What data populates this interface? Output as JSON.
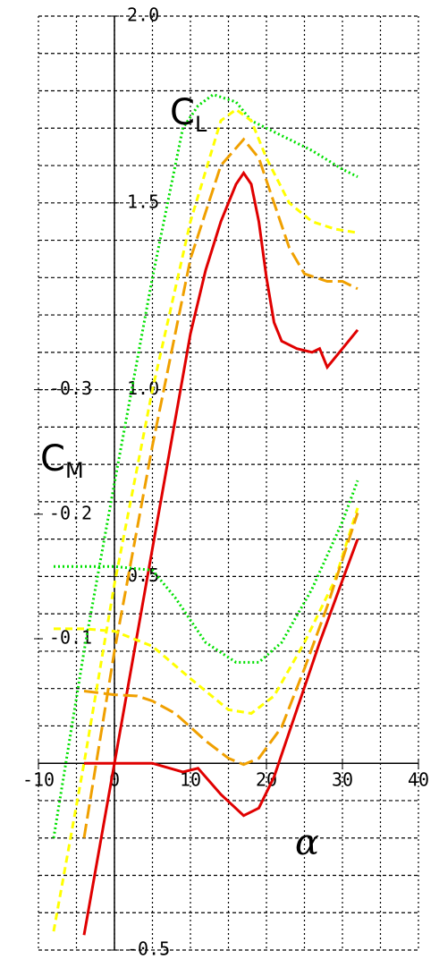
{
  "chart_data": {
    "type": "line",
    "xlabel": "α",
    "ylabel": {
      "main": "C",
      "sub": "L"
    },
    "y2label": {
      "main": "C",
      "sub": "M"
    },
    "xlim": [
      -10,
      40
    ],
    "xticks": [
      -10,
      0,
      10,
      20,
      30,
      40
    ],
    "xgrid": [
      -10,
      -5,
      0,
      5,
      10,
      15,
      20,
      25,
      30,
      35,
      40
    ],
    "ylim": [
      -0.5,
      2.0
    ],
    "yticks": [
      {
        "value": 2.0,
        "label": "2.0"
      },
      1.5,
      {
        "value": 1.0,
        "label": "1.0"
      },
      0.5,
      -0.5
    ],
    "ygrid": [
      -0.5,
      -0.4,
      -0.3,
      -0.2,
      -0.1,
      0,
      0.1,
      0.2,
      0.3,
      0.4,
      0.5,
      0.6,
      0.7,
      0.8,
      0.9,
      1.0,
      1.1,
      1.2,
      1.3,
      1.4,
      1.5,
      1.6,
      1.7,
      1.8,
      1.9,
      2.0
    ],
    "y2lim": [
      0.15,
      -0.6
    ],
    "y2ticks": [
      -0.3,
      -0.2,
      -0.1
    ],
    "grid": true,
    "series": [
      {
        "color": "#00e000",
        "style": "dotted",
        "axis": "y",
        "x": [
          -8,
          -4,
          0,
          5,
          9,
          11,
          13,
          16,
          18,
          22,
          26,
          30,
          32
        ],
        "values": [
          -0.2,
          0.3,
          0.75,
          1.3,
          1.7,
          1.76,
          1.79,
          1.77,
          1.72,
          1.68,
          1.64,
          1.59,
          1.57
        ]
      },
      {
        "color": "#ffff00",
        "style": "dashed",
        "axis": "y",
        "x": [
          -8,
          -4,
          0,
          5,
          10,
          14,
          16,
          18,
          20,
          23,
          26,
          29,
          32
        ],
        "values": [
          -0.45,
          0.0,
          0.48,
          1.0,
          1.45,
          1.72,
          1.75,
          1.72,
          1.62,
          1.5,
          1.45,
          1.43,
          1.42
        ]
      },
      {
        "color": "#f0a000",
        "style": "longdash",
        "axis": "y",
        "x": [
          -4,
          0,
          5,
          10,
          14,
          17,
          19,
          21,
          23,
          25,
          28,
          30,
          32
        ],
        "values": [
          -0.2,
          0.3,
          0.85,
          1.35,
          1.6,
          1.67,
          1.62,
          1.5,
          1.38,
          1.31,
          1.29,
          1.29,
          1.27
        ]
      },
      {
        "color": "#e00000",
        "style": "solid",
        "axis": "y",
        "x": [
          -4,
          0,
          10,
          12,
          14,
          16,
          17,
          18,
          19,
          20,
          21,
          22,
          24,
          26,
          27,
          28,
          30,
          32
        ],
        "values": [
          -0.46,
          0.0,
          1.15,
          1.32,
          1.45,
          1.55,
          1.58,
          1.55,
          1.45,
          1.3,
          1.18,
          1.13,
          1.11,
          1.1,
          1.11,
          1.06,
          1.11,
          1.16
        ]
      },
      {
        "color": "#00e000",
        "style": "dotted",
        "axis": "y2",
        "x": [
          -8,
          -4,
          0,
          5,
          8,
          12,
          16,
          19,
          22,
          26,
          30,
          32
        ],
        "values": [
          -0.158,
          -0.158,
          -0.158,
          -0.155,
          -0.133,
          -0.097,
          -0.081,
          -0.081,
          -0.097,
          -0.14,
          -0.194,
          -0.227
        ]
      },
      {
        "color": "#ffff00",
        "style": "dashed",
        "axis": "y2",
        "x": [
          -8,
          -4,
          0,
          5,
          10,
          15,
          18,
          21,
          25,
          29,
          32
        ],
        "values": [
          -0.108,
          -0.108,
          -0.106,
          -0.094,
          -0.068,
          -0.043,
          -0.04,
          -0.054,
          -0.097,
          -0.147,
          -0.205
        ]
      },
      {
        "color": "#f0a000",
        "style": "longdash",
        "axis": "y2",
        "x": [
          -4,
          0,
          3,
          5,
          8,
          12,
          15,
          17,
          19,
          22,
          25,
          28,
          32
        ],
        "values": [
          -0.058,
          -0.055,
          -0.054,
          -0.05,
          -0.04,
          -0.018,
          -0.004,
          0.001,
          -0.004,
          -0.029,
          -0.076,
          -0.126,
          -0.201
        ]
      },
      {
        "color": "#e00000",
        "style": "solid",
        "axis": "y2",
        "x": [
          -4,
          0,
          5,
          9,
          11,
          14,
          17,
          19,
          21,
          24,
          27,
          30,
          32
        ],
        "values": [
          0.0,
          0.0,
          0.0,
          0.007,
          0.004,
          0.025,
          0.042,
          0.036,
          0.011,
          -0.043,
          -0.097,
          -0.147,
          -0.18
        ]
      }
    ]
  }
}
